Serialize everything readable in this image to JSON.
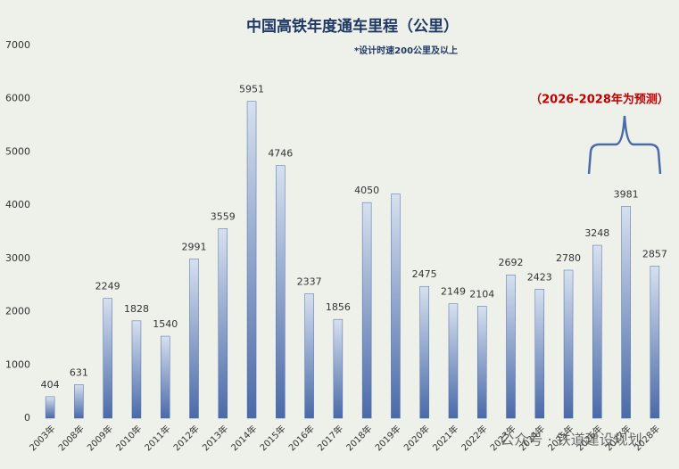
{
  "chart_data": {
    "type": "bar",
    "title": "中国高铁年度通车里程（公里）",
    "subtitle": "*设计时速200公里及以上",
    "annotation": "（2026-2028年为预测）",
    "watermark": "公众号 · 铁道建设规划",
    "categories": [
      "2003年",
      "2008年",
      "2009年",
      "2010年",
      "2011年",
      "2012年",
      "2013年",
      "2014年",
      "2015年",
      "2016年",
      "2017年",
      "2018年",
      "2019年",
      "2020年",
      "2021年",
      "2022年",
      "2023年",
      "2024年",
      "2025年",
      "2026年",
      "2027年",
      "2028年"
    ],
    "values": [
      404,
      631,
      2249,
      1828,
      1540,
      2991,
      3559,
      5951,
      4746,
      2337,
      1856,
      4050,
      4210,
      2475,
      2149,
      2104,
      2692,
      2423,
      2780,
      3248,
      3981,
      2857
    ],
    "value_labels": [
      "404",
      "631",
      "2249",
      "1828",
      "1540",
      "2991",
      "3559",
      "5951",
      "4746",
      "2337",
      "1856",
      "4050",
      null,
      "2475",
      "2149",
      "2104",
      "2692",
      "2423",
      "2780",
      "3248",
      "3981",
      "2857"
    ],
    "color": "#4a6aa8",
    "ylim": [
      0,
      7000
    ],
    "yticks": [
      0,
      1000,
      2000,
      3000,
      4000,
      5000,
      6000,
      7000
    ],
    "grid": false
  }
}
